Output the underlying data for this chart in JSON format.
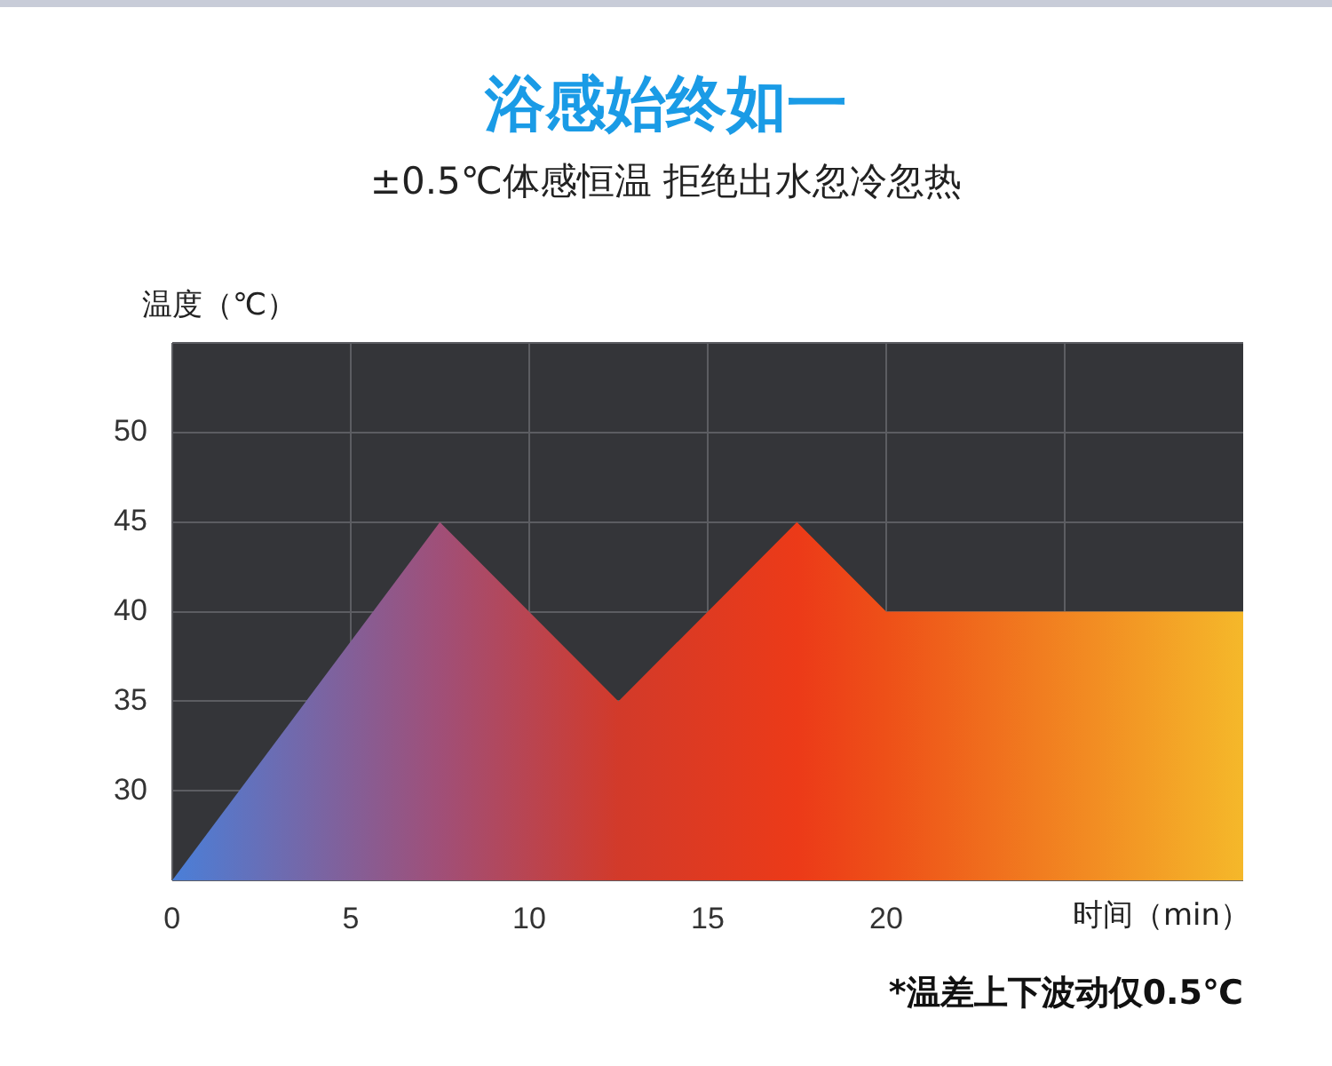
{
  "chart_data": {
    "type": "area",
    "title": "浴感始终如一",
    "subtitle": "±0.5℃体感恒温 拒绝出水忽冷忽热",
    "xlabel": "时间（min）",
    "ylabel": "温度（℃）",
    "annotations": [
      "*温差上下波动仅0.5℃"
    ],
    "x": [
      0,
      7.5,
      12.5,
      17.5,
      20,
      30
    ],
    "series": [
      {
        "colors": [
          "#4a7fd8",
          "#a04f78",
          "#d23a2a",
          "#ec3a18",
          "#ee5018",
          "#f5b82a"
        ],
        "values": [
          25,
          45,
          35,
          45,
          40,
          40
        ]
      }
    ],
    "xlim": [
      0,
      30
    ],
    "xticks": [
      0,
      5,
      10,
      15,
      20,
      {
        "value": 25,
        "label": null
      }
    ],
    "ylim": [
      25,
      55
    ],
    "yticks": [
      {
        "value": 25,
        "label": null
      },
      30,
      35,
      40,
      45,
      50,
      {
        "value": 55,
        "label": null
      }
    ],
    "grid": true,
    "legend": false
  }
}
